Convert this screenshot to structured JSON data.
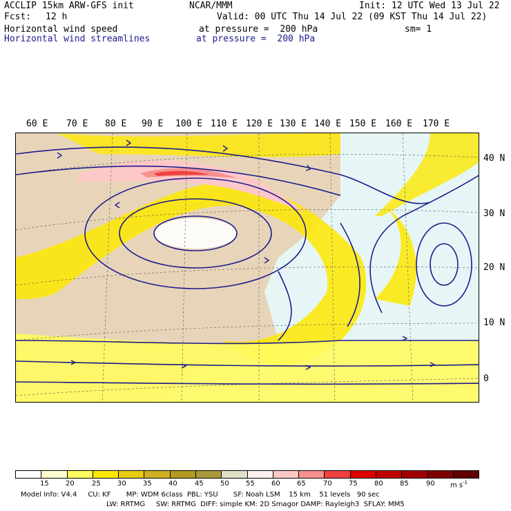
{
  "header": {
    "model": "ACCLIP 15km ARW-GFS init",
    "center": "NCAR/MMM",
    "init": "Init: 12 UTC Wed 13 Jul 22",
    "fcst_label": "Fcst:",
    "fcst_value": "12 h",
    "valid": "Valid: 00 UTC Thu 14 Jul 22 (09 KST Thu 14 Jul 22)",
    "field1": "Horizontal wind speed",
    "field1_level": "at pressure =  200 hPa",
    "smoothing": "sm= 1",
    "field2": "Horizontal wind streamlines",
    "field2_level": "at pressure =  200 hPa"
  },
  "map": {
    "lon_labels": [
      "60 E",
      "70 E",
      "80 E",
      "90 E",
      "100 E",
      "110 E",
      "120 E",
      "130 E",
      "140 E",
      "150 E",
      "160 E",
      "170 E"
    ],
    "lat_labels": [
      "40 N",
      "30 N",
      "20 N",
      "10 N",
      "0"
    ]
  },
  "legend": {
    "labels": [
      "15",
      "20",
      "25",
      "30",
      "35",
      "40",
      "45",
      "50",
      "55",
      "60",
      "65",
      "70",
      "75",
      "80",
      "85",
      "90"
    ],
    "unit": "m s",
    "unit_exp": "-1",
    "colors": [
      "#ffffff",
      "#fffdd0",
      "#fffb60",
      "#fde800",
      "#e8cc10",
      "#d0b020",
      "#b59a20",
      "#a89a3a",
      "#e0e0c8",
      "#fff0f0",
      "#ffc8c8",
      "#f89090",
      "#f04040",
      "#e00000",
      "#c00000",
      "#a00000",
      "#800000",
      "#600000"
    ]
  },
  "footer": {
    "line1": "Model Info: V4.4     CU: KF       MP: WDM 6class  PBL: YSU       SF: Noah LSM    15 km    51 levels   90 sec",
    "line2": "LW: RRTMG     SW: RRTMG  DIFF: simple KM: 2D Smagor DAMP: Rayleigh3  SFLAY: MM5"
  }
}
